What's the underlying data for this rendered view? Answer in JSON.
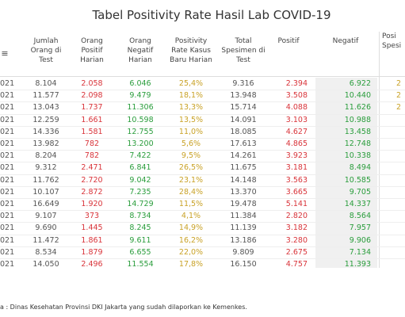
{
  "title": "Tabel Positivity Rate Hasil Lab COVID-19",
  "table": {
    "columns": [
      "Jumlah\nOrang di\nTest",
      "Orang\nPositif\nHarian",
      "Orang\nNegatif\nHarian",
      "Positivity\nRate Kasus\nBaru Harian",
      "Total\nSpesimen di\nTest",
      "Positif",
      "Negatif"
    ],
    "rows": [
      [
        "021",
        "8.104",
        "2.058",
        "6.046",
        "25,4%",
        "9.316",
        "2.394",
        "6.922"
      ],
      [
        "021",
        "11.577",
        "2.098",
        "9.479",
        "18,1%",
        "13.948",
        "3.508",
        "10.440"
      ],
      [
        "021",
        "13.043",
        "1.737",
        "11.306",
        "13,3%",
        "15.714",
        "4.088",
        "11.626"
      ],
      [
        "021",
        "12.259",
        "1.661",
        "10.598",
        "13,5%",
        "14.091",
        "3.103",
        "10.988"
      ],
      [
        "021",
        "14.336",
        "1.581",
        "12.755",
        "11,0%",
        "18.085",
        "4.627",
        "13.458"
      ],
      [
        "021",
        "13.982",
        "782",
        "13.200",
        "5,6%",
        "17.613",
        "4.865",
        "12.748"
      ],
      [
        "021",
        "8.204",
        "782",
        "7.422",
        "9,5%",
        "14.261",
        "3.923",
        "10.338"
      ],
      [
        "021",
        "9.312",
        "2.471",
        "6.841",
        "26,5%",
        "11.675",
        "3.181",
        "8.494"
      ],
      [
        "021",
        "11.762",
        "2.720",
        "9.042",
        "23,1%",
        "14.148",
        "3.563",
        "10.585"
      ],
      [
        "021",
        "10.107",
        "2.872",
        "7.235",
        "28,4%",
        "13.370",
        "3.665",
        "9.705"
      ],
      [
        "021",
        "16.649",
        "1.920",
        "14.729",
        "11,5%",
        "19.478",
        "5.141",
        "14.337"
      ],
      [
        "021",
        "9.107",
        "373",
        "8.734",
        "4,1%",
        "11.384",
        "2.820",
        "8.564"
      ],
      [
        "021",
        "9.690",
        "1.445",
        "8.245",
        "14,9%",
        "11.139",
        "3.182",
        "7.957"
      ],
      [
        "021",
        "11.472",
        "1.861",
        "9.611",
        "16,2%",
        "13.186",
        "3.280",
        "9.906"
      ],
      [
        "021",
        "8.534",
        "1.879",
        "6.655",
        "22,0%",
        "9.809",
        "2.675",
        "7.134"
      ],
      [
        "021",
        "14.050",
        "2.496",
        "11.554",
        "17,8%",
        "16.150",
        "4.757",
        "11.393"
      ]
    ],
    "last_column": {
      "header": "Posi\nSpesi",
      "values": [
        "2",
        "2",
        "2"
      ]
    }
  },
  "footer": "a : Dinas Kesehatan Provinsi DKI Jakarta yang sudah dilaporkan ke Kemenkes."
}
